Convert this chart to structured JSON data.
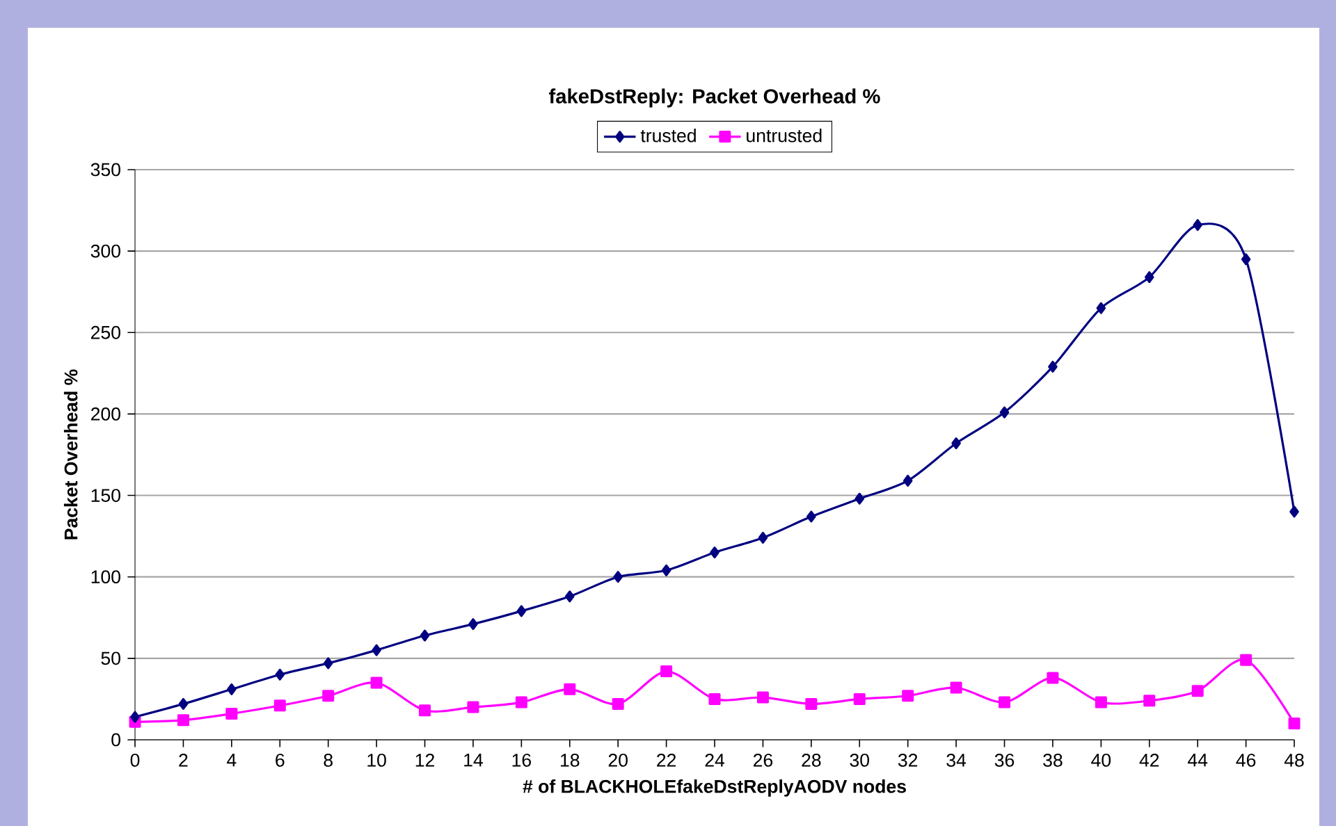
{
  "chart_data": {
    "type": "line",
    "title": "fakeDstReply: Packet Overhead %",
    "xlabel": "# of BLACKHOLEfakeDstReplyAODV nodes",
    "ylabel": "Packet Overhead %",
    "x": [
      0,
      2,
      4,
      6,
      8,
      10,
      12,
      14,
      16,
      18,
      20,
      22,
      24,
      26,
      28,
      30,
      32,
      34,
      36,
      38,
      40,
      42,
      44,
      46,
      48
    ],
    "series": [
      {
        "name": "trusted",
        "color": "#000080",
        "marker": "diamond",
        "values": [
          14,
          22,
          31,
          40,
          47,
          55,
          64,
          71,
          79,
          88,
          100,
          104,
          115,
          124,
          137,
          148,
          159,
          182,
          201,
          229,
          265,
          284,
          316,
          295,
          140
        ]
      },
      {
        "name": "untrusted",
        "color": "#ff00ff",
        "marker": "square",
        "values": [
          11,
          12,
          16,
          21,
          27,
          35,
          18,
          20,
          23,
          31,
          22,
          42,
          25,
          26,
          22,
          25,
          27,
          32,
          23,
          38,
          23,
          24,
          30,
          49,
          10
        ]
      }
    ],
    "xlim": [
      0,
      48
    ],
    "xticks": [
      0,
      2,
      4,
      6,
      8,
      10,
      12,
      14,
      16,
      18,
      20,
      22,
      24,
      26,
      28,
      30,
      32,
      34,
      36,
      38,
      40,
      42,
      44,
      46,
      48
    ],
    "ylim": [
      0,
      350
    ],
    "yticks": [
      0,
      50,
      100,
      150,
      200,
      250,
      300,
      350
    ],
    "grid": "y",
    "legend": "top",
    "line_style": "solid"
  }
}
